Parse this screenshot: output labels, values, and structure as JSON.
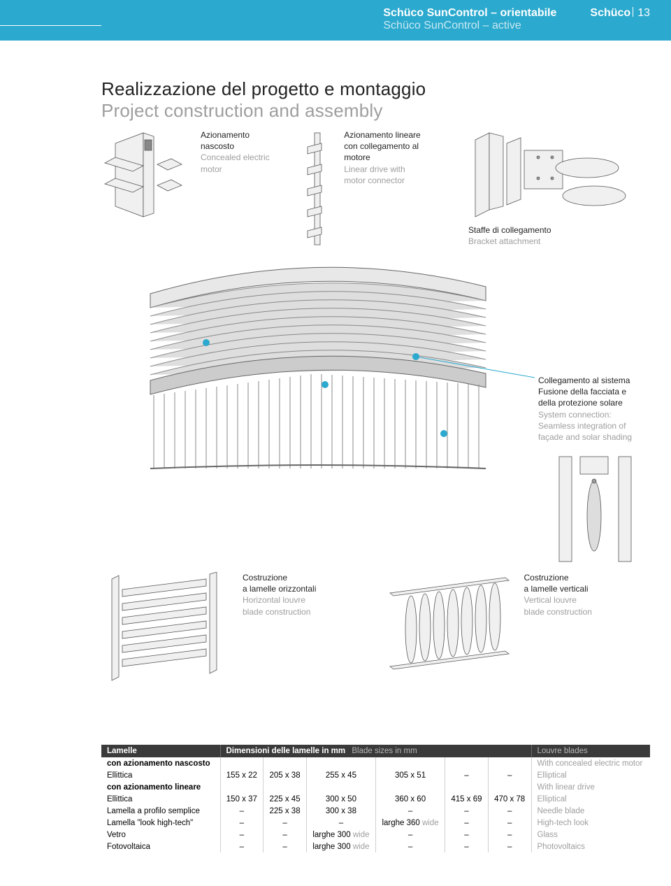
{
  "header": {
    "title_it": "Schüco SunControl – orientabile",
    "title_en": "Schüco SunControl – active",
    "brand": "Schüco",
    "page_number": "13",
    "bg_color": "#2ba9ce"
  },
  "page_title": {
    "it": "Realizzazione del progetto e montaggio",
    "en": "Project construction and assembly"
  },
  "captions": {
    "motor": {
      "it": "Azionamento\nnascosto",
      "en": "Concealed electric\nmotor"
    },
    "linear": {
      "it": "Azionamento lineare\ncon collegamento al\nmotore",
      "en": "Linear drive with\nmotor connector"
    },
    "bracket": {
      "it": "Staffe di collegamento",
      "en": "Bracket attachment"
    },
    "system": {
      "it": "Collegamento al sistema\nFusione della facciata e\ndella protezione solare",
      "en": "System connection:\nSeamless integration of\nfaçade and solar shading"
    },
    "horizontal": {
      "it": "Costruzione\na lamelle orizzontali",
      "en": "Horizontal louvre\nblade construction"
    },
    "vertical": {
      "it": "Costruzione\na lamelle verticali",
      "en": "Vertical louvre\nblade construction"
    }
  },
  "table": {
    "head": {
      "col1": "Lamelle",
      "col_mid_it": "Dimensioni delle lamelle in mm",
      "col_mid_en": "Blade sizes in mm",
      "col_last": "Louvre blades"
    },
    "rows": [
      {
        "type": "subhead",
        "label": "con azionamento nascosto",
        "vals": [
          "",
          "",
          "",
          "",
          "",
          ""
        ],
        "right": "With concealed electric motor"
      },
      {
        "label": "Ellittica",
        "vals": [
          "155 x 22",
          "205 x 38",
          "255 x 45",
          "305 x 51",
          "–",
          "–"
        ],
        "right": "Elliptical"
      },
      {
        "type": "subhead",
        "label": "con azionamento lineare",
        "vals": [
          "",
          "",
          "",
          "",
          "",
          ""
        ],
        "right": "With linear drive"
      },
      {
        "label": "Ellittica",
        "vals": [
          "150 x 37",
          "225 x 45",
          "300 x 50",
          "360 x 60",
          "415 x 69",
          "470 x 78"
        ],
        "right": "Elliptical"
      },
      {
        "label": "Lamella a profilo semplice",
        "vals": [
          "–",
          "225 x 38",
          "300 x 38",
          "–",
          "–",
          "–"
        ],
        "right": "Needle blade"
      },
      {
        "label": "Lamella \"look high-tech\"",
        "vals": [
          "–",
          "–",
          "–",
          "larghe 360 |wide",
          "–",
          "–"
        ],
        "right": "High-tech look"
      },
      {
        "label": "Vetro",
        "vals": [
          "–",
          "–",
          "larghe 300 |wide",
          "–",
          "–",
          "–"
        ],
        "right": "Glass"
      },
      {
        "label": "Fotovoltaica",
        "vals": [
          "–",
          "–",
          "larghe 300 |wide",
          "–",
          "–",
          "–"
        ],
        "right": "Photovoltaics"
      }
    ]
  }
}
